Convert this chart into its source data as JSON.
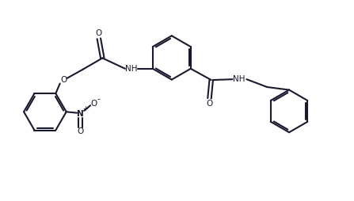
{
  "line_color": "#1a1a2e",
  "bg_color": "#ffffff",
  "lw": 1.5,
  "dbo": 0.05,
  "figsize": [
    4.47,
    2.54
  ],
  "dpi": 100,
  "xlim": [
    0,
    10
  ],
  "ylim": [
    0,
    5.68
  ]
}
